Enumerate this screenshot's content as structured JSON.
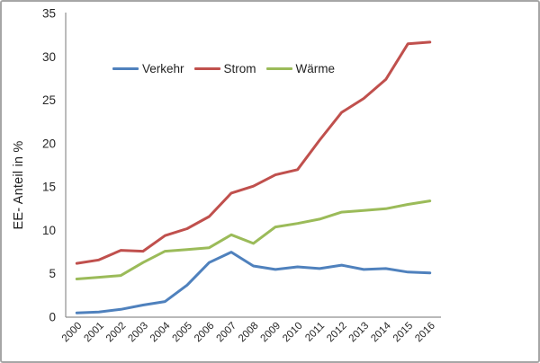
{
  "figure": {
    "ylabel": "EE- Anteil in %",
    "border_color": "#a6a6a6",
    "axis_color": "#8f8f8f",
    "text_color": "#262626",
    "background": "#ffffff"
  },
  "chart_data": {
    "type": "line",
    "title": "",
    "xlabel": "",
    "ylabel": "EE- Anteil in %",
    "x": [
      "2000",
      "2001",
      "2002",
      "2003",
      "2004",
      "2005",
      "2006",
      "2007",
      "2008",
      "2009",
      "2010",
      "2011",
      "2012",
      "2013",
      "2014",
      "2015",
      "2016"
    ],
    "ylim": [
      0,
      35
    ],
    "yticks": [
      0,
      5,
      10,
      15,
      20,
      25,
      30,
      35
    ],
    "grid": false,
    "legend_position": "inside-top-left",
    "series": [
      {
        "name": "Verkehr",
        "color": "#4F81BD",
        "values": [
          0.5,
          0.6,
          0.9,
          1.4,
          1.8,
          3.7,
          6.3,
          7.5,
          5.9,
          5.5,
          5.8,
          5.6,
          6.0,
          5.5,
          5.6,
          5.2,
          5.1
        ]
      },
      {
        "name": "Strom",
        "color": "#C0504D",
        "values": [
          6.2,
          6.6,
          7.7,
          7.6,
          9.4,
          10.2,
          11.6,
          14.3,
          15.1,
          16.4,
          17.0,
          20.4,
          23.6,
          25.2,
          27.4,
          31.5,
          31.7
        ]
      },
      {
        "name": "Wärme",
        "color": "#9BBB59",
        "values": [
          4.4,
          4.6,
          4.8,
          6.3,
          7.6,
          7.8,
          8.0,
          9.5,
          8.5,
          10.4,
          10.8,
          11.3,
          12.1,
          12.3,
          12.5,
          13.0,
          13.4
        ]
      }
    ]
  }
}
